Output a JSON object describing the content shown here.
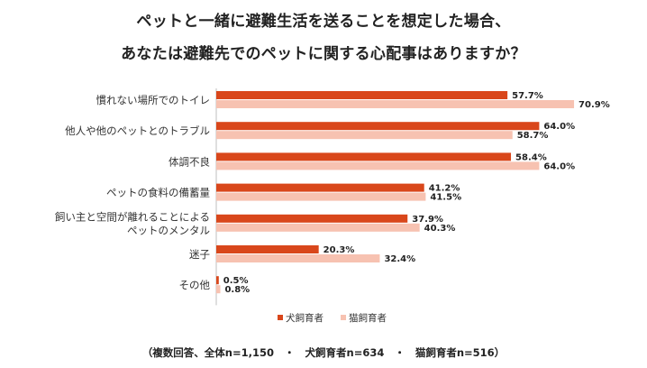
{
  "title_line1": "ペットと一緒に避難生活を送ることを想定した場合、",
  "title_line2": "あなたは避難先でのペットに関する心配事はありますか？",
  "footnote": "（複数回答、全体n=1,150　・　犬飼育者n=634　・　猫飼育者n=516）",
  "chart_data": {
    "type": "bar",
    "orientation": "horizontal",
    "categories": [
      [
        "慣れない場所でのトイレ"
      ],
      [
        "他人や他のペットとのトラブル"
      ],
      [
        "体調不良"
      ],
      [
        "ペットの食料の備蓄量"
      ],
      [
        "飼い主と空間が離れることによる",
        "ペットのメンタル"
      ],
      [
        "迷子"
      ],
      [
        "その他"
      ]
    ],
    "series": [
      {
        "name": "犬飼育者",
        "color": "#d9471b",
        "values": [
          57.7,
          64.0,
          58.4,
          41.2,
          37.9,
          20.3,
          0.5
        ],
        "labels": [
          "57.7%",
          "64.0%",
          "58.4%",
          "41.2%",
          "37.9%",
          "20.3%",
          "0.5%"
        ]
      },
      {
        "name": "猫飼育者",
        "color": "#f7c2b1",
        "values": [
          70.9,
          58.7,
          64.0,
          41.5,
          40.3,
          32.4,
          0.8
        ],
        "labels": [
          "70.9%",
          "58.7%",
          "64.0%",
          "41.5%",
          "40.3%",
          "32.4%",
          "0.8%"
        ]
      }
    ],
    "xlim": [
      0,
      100
    ],
    "legend_position": "bottom"
  }
}
